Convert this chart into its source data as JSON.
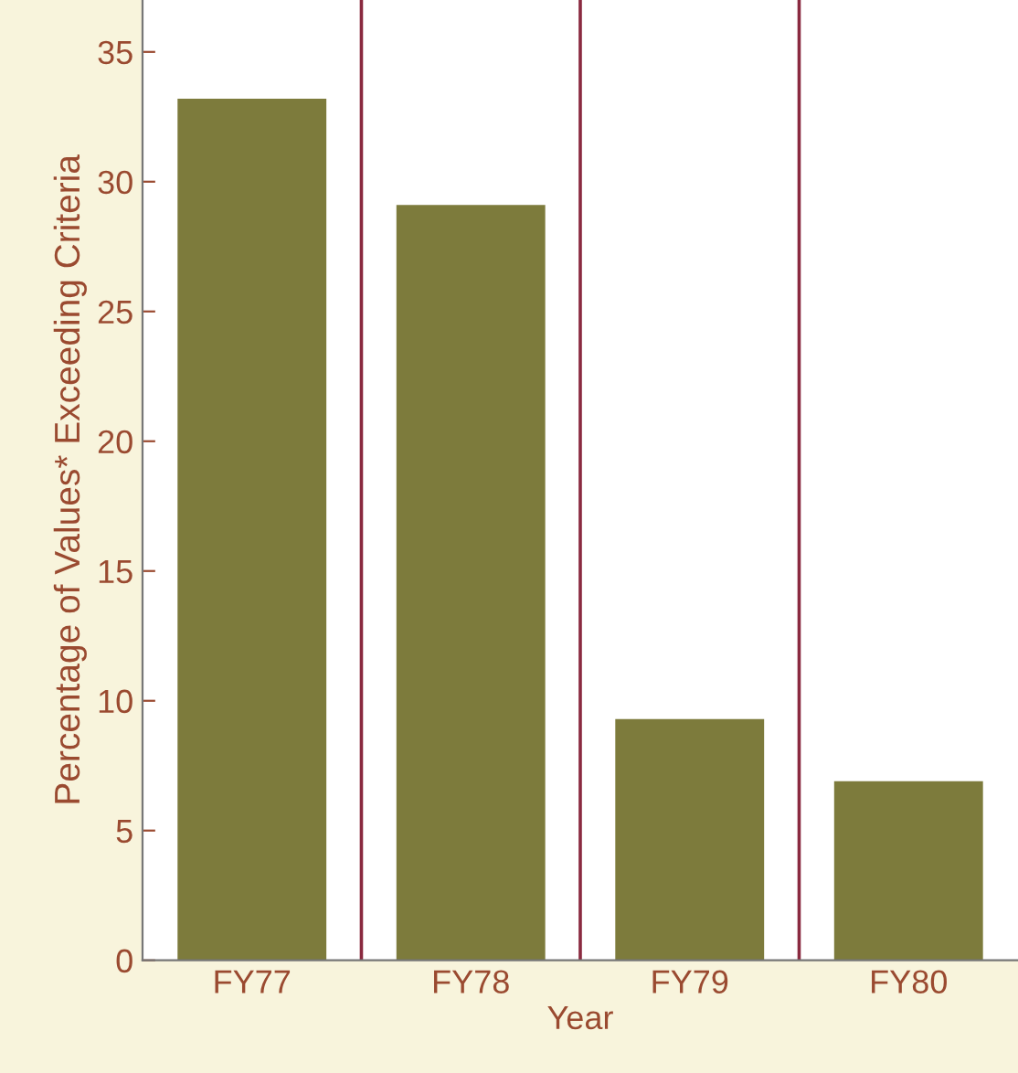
{
  "chart_data": {
    "type": "bar",
    "xlabel": "Year",
    "ylabel": "Percentage of Values* Exceeding Criteria",
    "categories": [
      "FY77",
      "FY78",
      "FY79",
      "FY80"
    ],
    "values": [
      33.2,
      29.1,
      9.3,
      6.9
    ],
    "color": "#7d7b3c",
    "ylim": [
      0,
      37
    ],
    "yticks": [
      0,
      5,
      10,
      15,
      20,
      25,
      30,
      35
    ],
    "grid": false,
    "legend": false
  }
}
